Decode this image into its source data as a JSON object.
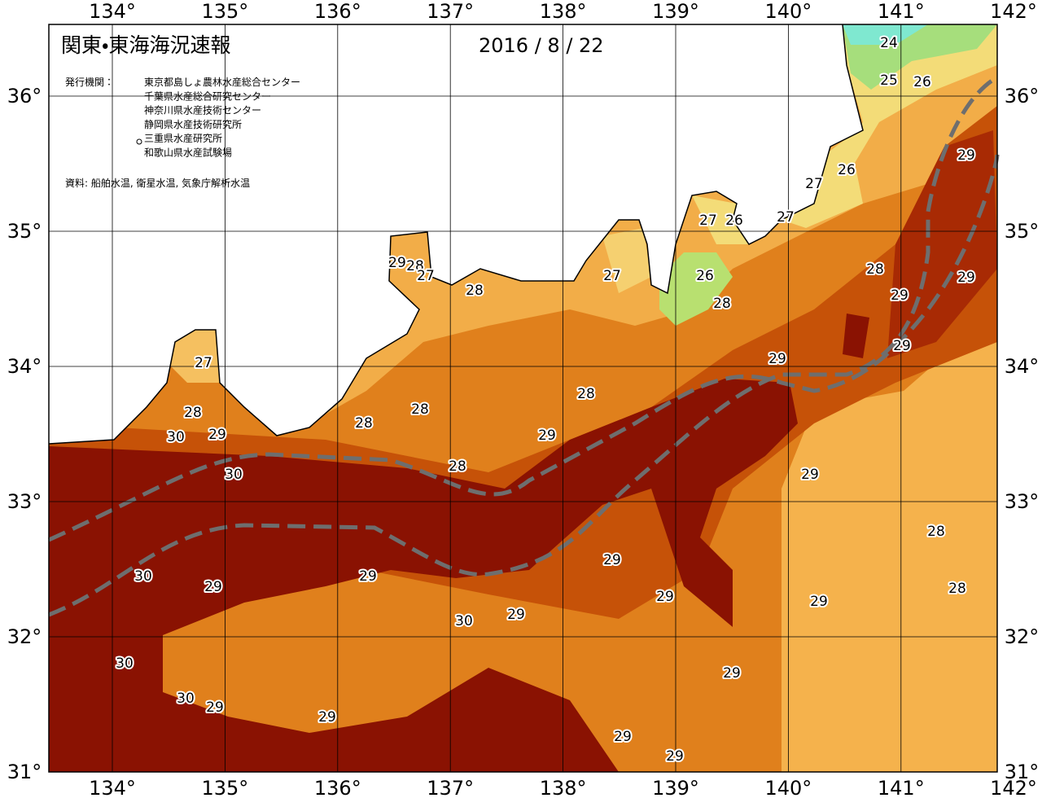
{
  "header": {
    "title": "関東・東海海況速報",
    "date": "2016 / 8 / 22"
  },
  "agencies": {
    "label": "発行機関：",
    "list": [
      "東京都島しょ農林水産総合センター",
      "千葉県水産総合研究センター",
      "神奈川県水産技術センター",
      "静岡県水産技術研究所",
      "三重県水産研究所",
      "和歌山県水産試験場"
    ]
  },
  "source": "資料: 船舶水温, 衛星水温, 気象庁解析水温",
  "axes": {
    "lon": [
      "134°",
      "135°",
      "136°",
      "137°",
      "138°",
      "139°",
      "140°",
      "141°",
      "142°"
    ],
    "lat": [
      "36°",
      "35°",
      "34°",
      "33°",
      "32°",
      "31°"
    ]
  },
  "contour_labels": [
    24,
    25,
    26,
    29,
    26,
    27,
    27,
    26,
    27,
    29,
    28,
    27,
    28,
    27,
    26,
    28,
    29,
    28,
    29,
    29,
    29,
    27,
    28,
    28,
    28,
    28,
    30,
    29,
    29,
    28,
    30,
    29,
    28,
    29,
    30,
    29,
    29,
    28,
    29,
    29,
    29,
    30,
    30,
    29,
    30,
    29,
    29,
    29,
    29
  ]
}
